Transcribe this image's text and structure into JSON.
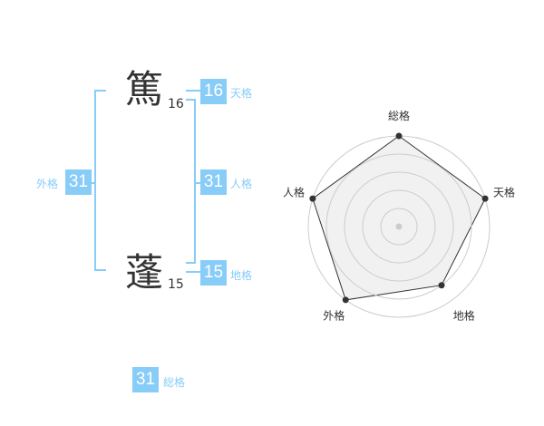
{
  "name": {
    "chars": [
      {
        "char": "篤",
        "strokes": "16"
      },
      {
        "char": "蓬",
        "strokes": "15"
      }
    ]
  },
  "fortunes": {
    "tenkaku": {
      "label": "天格",
      "value": "16"
    },
    "jinkaku": {
      "label": "人格",
      "value": "31"
    },
    "chikaku": {
      "label": "地格",
      "value": "15"
    },
    "gaikaku": {
      "label": "外格",
      "value": "31"
    },
    "soukaku": {
      "label": "総格",
      "value": "31"
    }
  },
  "colors": {
    "accent": "#88ccf8",
    "radar_fill": "#f0f0f0",
    "radar_line": "#333333"
  },
  "chart_data": {
    "type": "radar",
    "axes": [
      "総格",
      "天格",
      "地格",
      "外格",
      "人格"
    ],
    "values": [
      5,
      5,
      4,
      5,
      5
    ],
    "range": [
      0,
      5
    ],
    "rings": 5
  }
}
